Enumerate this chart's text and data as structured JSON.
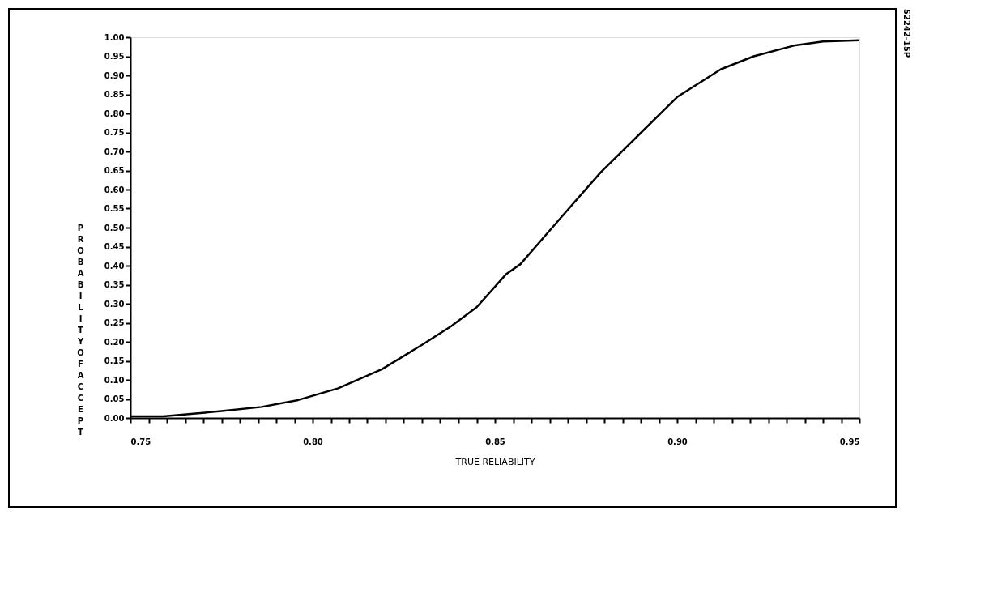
{
  "chart_data": {
    "type": "line",
    "xlabel": "TRUE RELIABILITY",
    "ylabel": "PROBABILITY OF ACCEPT",
    "annotations": [
      "52242-15P"
    ],
    "x": [
      0.75,
      0.759,
      0.766,
      0.775,
      0.786,
      0.796,
      0.807,
      0.819,
      0.83,
      0.838,
      0.845,
      0.853,
      0.857,
      0.868,
      0.879,
      0.891,
      0.9,
      0.912,
      0.921,
      0.932,
      0.94,
      0.95
    ],
    "series": [
      {
        "color": "#000000",
        "values": [
          0.004,
          0.004,
          0.01,
          0.018,
          0.029,
          0.047,
          0.078,
          0.128,
          0.192,
          0.241,
          0.291,
          0.377,
          0.404,
          0.525,
          0.645,
          0.758,
          0.843,
          0.916,
          0.95,
          0.978,
          0.989,
          0.992
        ]
      }
    ],
    "xlim": [
      0.75,
      0.95
    ],
    "ylim": [
      0.0,
      1.0
    ],
    "xticks": [
      0.75,
      {
        "value": 0.755,
        "label": null
      },
      {
        "value": 0.76,
        "label": null
      },
      {
        "value": 0.765,
        "label": null
      },
      {
        "value": 0.77,
        "label": null
      },
      {
        "value": 0.775,
        "label": null
      },
      {
        "value": 0.78,
        "label": null
      },
      {
        "value": 0.785,
        "label": null
      },
      {
        "value": 0.79,
        "label": null
      },
      {
        "value": 0.795,
        "label": null
      },
      {
        "value": 0.8,
        "label": "0.80"
      },
      {
        "value": 0.805,
        "label": null
      },
      {
        "value": 0.81,
        "label": null
      },
      {
        "value": 0.815,
        "label": null
      },
      {
        "value": 0.82,
        "label": null
      },
      {
        "value": 0.825,
        "label": null
      },
      {
        "value": 0.83,
        "label": null
      },
      {
        "value": 0.835,
        "label": null
      },
      {
        "value": 0.84,
        "label": null
      },
      {
        "value": 0.845,
        "label": null
      },
      0.85,
      {
        "value": 0.855,
        "label": null
      },
      {
        "value": 0.86,
        "label": null
      },
      {
        "value": 0.865,
        "label": null
      },
      {
        "value": 0.87,
        "label": null
      },
      {
        "value": 0.875,
        "label": null
      },
      {
        "value": 0.88,
        "label": null
      },
      {
        "value": 0.885,
        "label": null
      },
      {
        "value": 0.89,
        "label": null
      },
      {
        "value": 0.895,
        "label": null
      },
      {
        "value": 0.9,
        "label": "0.90"
      },
      {
        "value": 0.905,
        "label": null
      },
      {
        "value": 0.91,
        "label": null
      },
      {
        "value": 0.915,
        "label": null
      },
      {
        "value": 0.92,
        "label": null
      },
      {
        "value": 0.925,
        "label": null
      },
      {
        "value": 0.93,
        "label": null
      },
      {
        "value": 0.935,
        "label": null
      },
      {
        "value": 0.94,
        "label": null
      },
      {
        "value": 0.945,
        "label": null
      },
      0.95
    ],
    "yticks": [
      {
        "value": 0,
        "label": "0.00"
      },
      0.05,
      {
        "value": 0.1,
        "label": "0.10"
      },
      0.15,
      {
        "value": 0.2,
        "label": "0.20"
      },
      0.25,
      {
        "value": 0.3,
        "label": "0.30"
      },
      0.35,
      {
        "value": 0.4,
        "label": "0.40"
      },
      0.45,
      {
        "value": 0.5,
        "label": "0.50"
      },
      0.55,
      {
        "value": 0.6,
        "label": "0.60"
      },
      0.65,
      {
        "value": 0.7,
        "label": "0.70"
      },
      0.75,
      {
        "value": 0.8,
        "label": "0.80"
      },
      0.85,
      {
        "value": 0.9,
        "label": "0.90"
      },
      0.95,
      {
        "value": 1,
        "label": "1.00"
      }
    ],
    "grid": false,
    "legend": false,
    "marker": "none",
    "line_style": "solid"
  }
}
